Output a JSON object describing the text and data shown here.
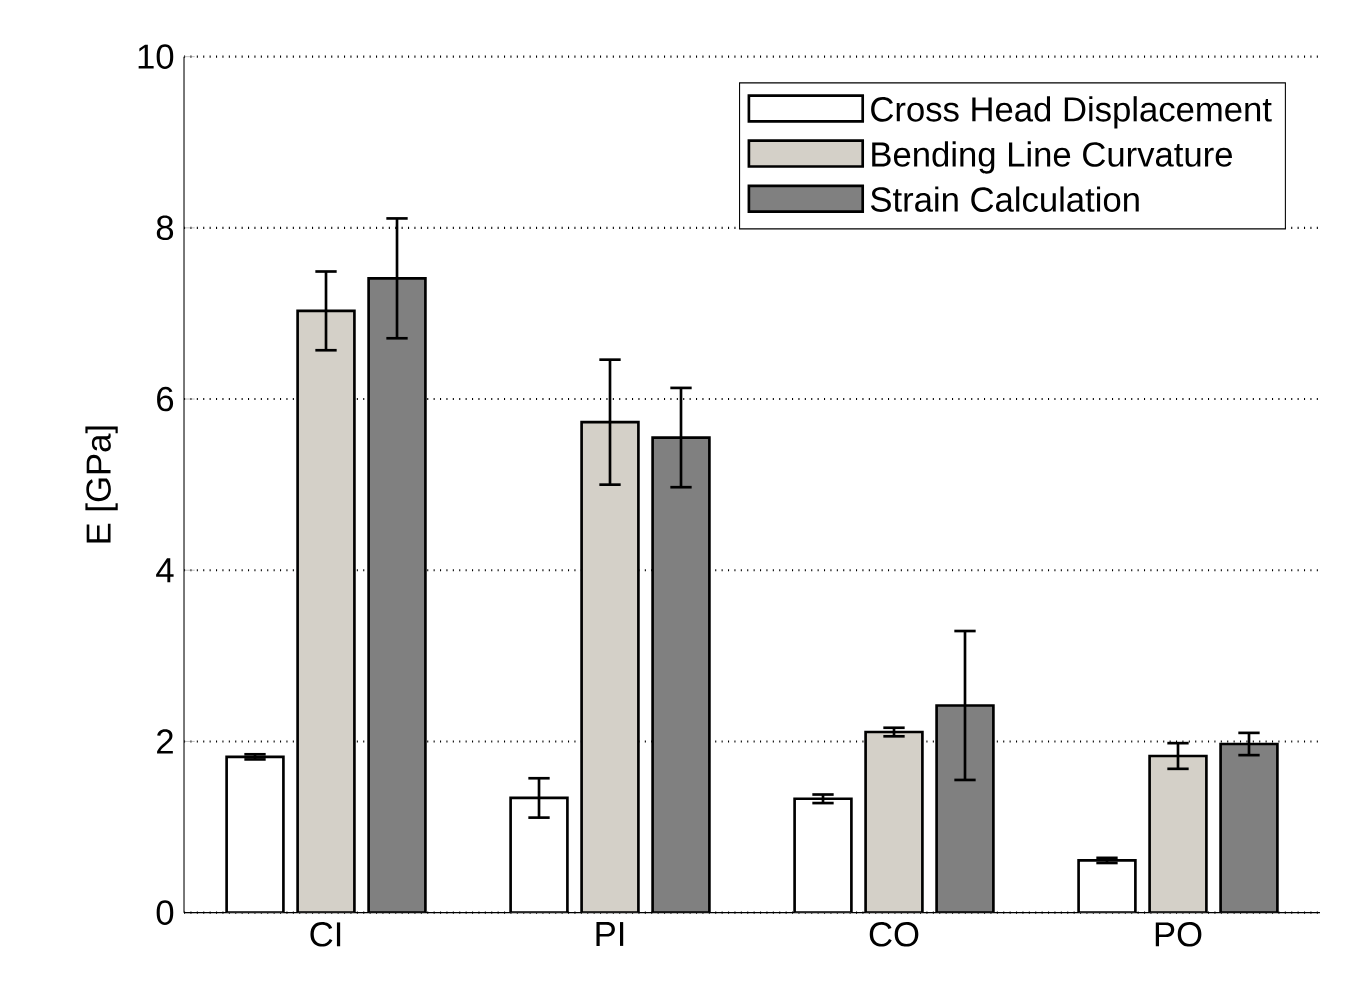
{
  "chart_data": {
    "type": "bar",
    "ylabel": "E [GPa]",
    "categories": [
      "CI",
      "PI",
      "CO",
      "PO"
    ],
    "series": [
      {
        "name": "Cross Head Displacement",
        "color": "#ffffff",
        "values": [
          1.82,
          1.34,
          1.33,
          0.61
        ],
        "errors": [
          0.03,
          0.23,
          0.05,
          0.03
        ]
      },
      {
        "name": "Bending Line Curvature",
        "color": "#d4d0c8",
        "values": [
          7.03,
          5.73,
          2.11,
          1.83
        ],
        "errors": [
          0.46,
          0.73,
          0.05,
          0.15
        ]
      },
      {
        "name": "Strain Calculation",
        "color": "#808080",
        "values": [
          7.41,
          5.55,
          2.42,
          1.97
        ],
        "errors": [
          0.7,
          0.58,
          0.87,
          0.13
        ]
      }
    ],
    "ylim": [
      0,
      10
    ],
    "yticks": [
      0,
      2,
      4,
      6,
      8,
      10
    ],
    "grid": "y",
    "legend": "top right"
  }
}
